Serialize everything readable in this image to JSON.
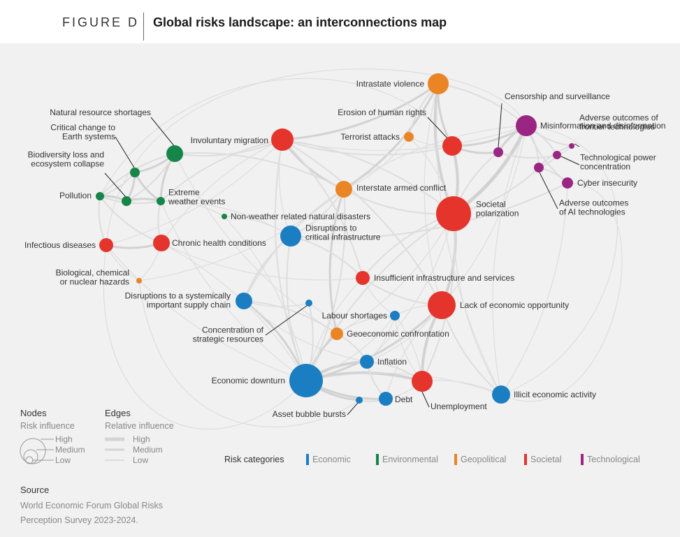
{
  "header": {
    "figure_label": "FIGURE D",
    "title": "Global risks landscape: an interconnections map"
  },
  "colors": {
    "Economic": "#1b7ec2",
    "Environmental": "#168548",
    "Geopolitical": "#ea8424",
    "Societal": "#e5342c",
    "Technological": "#9a2583",
    "edge": "#d9d9d9",
    "background": "#f1f1f1"
  },
  "nodes": [
    {
      "id": "intrastate",
      "label": [
        "Intrastate violence"
      ],
      "category": "Geopolitical"
    },
    {
      "id": "censorship",
      "label": [
        "Censorship and surveillance"
      ],
      "category": "Technological"
    },
    {
      "id": "natres",
      "label": [
        "Natural resource shortages"
      ],
      "category": "Environmental"
    },
    {
      "id": "human_rights",
      "label": [
        "Erosion of human rights"
      ],
      "category": "Societal"
    },
    {
      "id": "misinfo",
      "label": [
        "Misinformation and disinformation"
      ],
      "category": "Technological"
    },
    {
      "id": "earth",
      "label": [
        "Critical change to",
        "Earth systems"
      ],
      "category": "Environmental"
    },
    {
      "id": "migration",
      "label": [
        "Involuntary migration"
      ],
      "category": "Societal"
    },
    {
      "id": "terrorist",
      "label": [
        "Terrorist attacks"
      ],
      "category": "Geopolitical"
    },
    {
      "id": "frontier",
      "label": [
        "Adverse outcomes of",
        "frontier technologies"
      ],
      "category": "Technological"
    },
    {
      "id": "biodiv",
      "label": [
        "Biodiversity loss and",
        "ecosystem collapse"
      ],
      "category": "Environmental"
    },
    {
      "id": "techpower",
      "label": [
        "Technological power",
        "concentration"
      ],
      "category": "Technological"
    },
    {
      "id": "cyber",
      "label": [
        "Cyber insecurity"
      ],
      "category": "Technological"
    },
    {
      "id": "pollution",
      "label": [
        "Pollution"
      ],
      "category": "Environmental"
    },
    {
      "id": "extreme",
      "label": [
        "Extreme",
        "weather events"
      ],
      "category": "Environmental"
    },
    {
      "id": "interstate",
      "label": [
        "Interstate armed conflict"
      ],
      "category": "Geopolitical"
    },
    {
      "id": "adv_ai",
      "label": [
        "Adverse outcomes",
        "of AI technologies"
      ],
      "category": "Technological"
    },
    {
      "id": "polarization",
      "label": [
        "Societal",
        "polarization"
      ],
      "category": "Societal"
    },
    {
      "id": "nonweather",
      "label": [
        "Non-weather related natural disasters"
      ],
      "category": "Environmental"
    },
    {
      "id": "disrupt_infra",
      "label": [
        "Disruptions to",
        "critical infrastructure"
      ],
      "category": "Economic"
    },
    {
      "id": "infectious",
      "label": [
        "Infectious diseases"
      ],
      "category": "Societal"
    },
    {
      "id": "chronic",
      "label": [
        "Chronic health conditions"
      ],
      "category": "Societal"
    },
    {
      "id": "biochem",
      "label": [
        "Biological, chemical",
        "or nuclear hazards"
      ],
      "category": "Geopolitical"
    },
    {
      "id": "insuff_infra",
      "label": [
        "Insufficient infrastructure and services"
      ],
      "category": "Societal"
    },
    {
      "id": "supply",
      "label": [
        "Disruptions to a systemically",
        "important supply chain"
      ],
      "category": "Economic"
    },
    {
      "id": "econ_opp",
      "label": [
        "Lack of economic opportunity"
      ],
      "category": "Societal"
    },
    {
      "id": "labour",
      "label": [
        "Labour shortages"
      ],
      "category": "Economic"
    },
    {
      "id": "concentration",
      "label": [
        "Concentration of",
        "strategic resources"
      ],
      "category": "Economic"
    },
    {
      "id": "geoecon",
      "label": [
        "Geoeconomic confrontation"
      ],
      "category": "Geopolitical"
    },
    {
      "id": "inflation",
      "label": [
        "Inflation"
      ],
      "category": "Economic"
    },
    {
      "id": "downturn",
      "label": [
        "Economic downturn"
      ],
      "category": "Economic"
    },
    {
      "id": "illicit",
      "label": [
        "Illicit economic activity"
      ],
      "category": "Economic"
    },
    {
      "id": "debt",
      "label": [
        "Debt"
      ],
      "category": "Economic"
    },
    {
      "id": "unemployment",
      "label": [
        "Unemployment"
      ],
      "category": "Societal"
    },
    {
      "id": "bubble",
      "label": [
        "Asset bubble bursts"
      ],
      "category": "Economic"
    }
  ],
  "legend": {
    "nodes_title": "Nodes",
    "nodes_subtitle": "Risk influence",
    "node_levels": [
      "High",
      "Medium",
      "Low"
    ],
    "edges_title": "Edges",
    "edges_subtitle": "Relative influence",
    "edge_levels": [
      "High",
      "Medium",
      "Low"
    ],
    "categories_title": "Risk categories",
    "categories": [
      "Economic",
      "Environmental",
      "Geopolitical",
      "Societal",
      "Technological"
    ]
  },
  "source": {
    "title": "Source",
    "text": "World Economic Forum Global Risks Perception Survey 2023-2024."
  }
}
